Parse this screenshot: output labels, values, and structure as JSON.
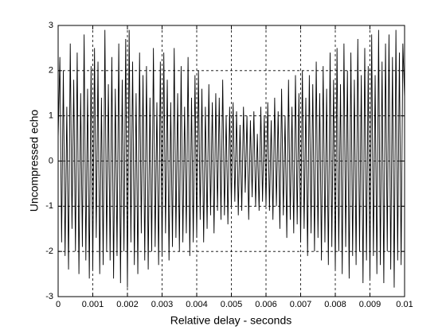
{
  "chart_data": {
    "type": "line",
    "xlabel": "Relative delay - seconds",
    "ylabel": "Uncompressed echo",
    "color": "#000000",
    "grid": true,
    "xlim": [
      0,
      0.01
    ],
    "ylim": [
      -3,
      3
    ],
    "xticks": [
      0,
      0.001,
      0.002,
      0.003,
      0.004,
      0.005,
      0.006,
      0.007,
      0.008,
      0.009,
      0.01
    ],
    "yticks": [
      -3,
      -2,
      -1,
      0,
      1,
      2,
      3
    ],
    "x": [
      0,
      5e-05,
      0.0001,
      0.00015,
      0.0002,
      0.00025,
      0.0003,
      0.00035,
      0.0004,
      0.00045,
      0.0005,
      0.00055,
      0.0006,
      0.00065,
      0.0007,
      0.00075,
      0.0008,
      0.00085,
      0.0009,
      0.00095,
      0.001,
      0.00105,
      0.0011,
      0.00115,
      0.0012,
      0.00125,
      0.0013,
      0.00135,
      0.0014,
      0.00145,
      0.0015,
      0.00155,
      0.0016,
      0.00165,
      0.0017,
      0.00175,
      0.0018,
      0.00185,
      0.0019,
      0.00195,
      0.002,
      0.00205,
      0.0021,
      0.00215,
      0.0022,
      0.00225,
      0.0023,
      0.00235,
      0.0024,
      0.00245,
      0.0025,
      0.00255,
      0.0026,
      0.00265,
      0.0027,
      0.00275,
      0.0028,
      0.00285,
      0.0029,
      0.00295,
      0.003,
      0.00305,
      0.0031,
      0.00315,
      0.0032,
      0.00325,
      0.0033,
      0.00335,
      0.0034,
      0.00345,
      0.0035,
      0.00355,
      0.0036,
      0.00365,
      0.0037,
      0.00375,
      0.0038,
      0.00385,
      0.0039,
      0.00395,
      0.004,
      0.00405,
      0.0041,
      0.00415,
      0.0042,
      0.00425,
      0.0043,
      0.00435,
      0.0044,
      0.00445,
      0.0045,
      0.00455,
      0.0046,
      0.00465,
      0.0047,
      0.00475,
      0.0048,
      0.00485,
      0.0049,
      0.00495,
      0.005,
      0.00505,
      0.0051,
      0.00515,
      0.0052,
      0.00525,
      0.0053,
      0.00535,
      0.0054,
      0.00545,
      0.0055,
      0.00555,
      0.0056,
      0.00565,
      0.0057,
      0.00575,
      0.0058,
      0.00585,
      0.0059,
      0.00595,
      0.006,
      0.00605,
      0.0061,
      0.00615,
      0.0062,
      0.00625,
      0.0063,
      0.00635,
      0.0064,
      0.00645,
      0.0065,
      0.00655,
      0.0066,
      0.00665,
      0.0067,
      0.00675,
      0.0068,
      0.00685,
      0.0069,
      0.00695,
      0.007,
      0.00705,
      0.0071,
      0.00715,
      0.0072,
      0.00725,
      0.0073,
      0.00735,
      0.0074,
      0.00745,
      0.0075,
      0.00755,
      0.0076,
      0.00765,
      0.0077,
      0.00775,
      0.0078,
      0.00785,
      0.0079,
      0.00795,
      0.008,
      0.00805,
      0.0081,
      0.00815,
      0.0082,
      0.00825,
      0.0083,
      0.00835,
      0.0084,
      0.00845,
      0.0085,
      0.00855,
      0.0086,
      0.00865,
      0.0087,
      0.00875,
      0.0088,
      0.00885,
      0.0089,
      0.00895,
      0.009,
      0.00905,
      0.0091,
      0.00915,
      0.0092,
      0.00925,
      0.0093,
      0.00935,
      0.0094,
      0.00945,
      0.0095,
      0.00955,
      0.0096,
      0.00965,
      0.0097,
      0.00975,
      0.0098,
      0.00985,
      0.0099,
      0.00995,
      0.01
    ],
    "values": [
      0.5,
      2.3,
      -1.8,
      2.0,
      -2.1,
      1.2,
      -2.4,
      2.6,
      -1.5,
      1.8,
      -2.0,
      2.4,
      -2.5,
      1.5,
      -1.9,
      2.8,
      -2.2,
      1.6,
      -2.6,
      2.1,
      -2.4,
      2.5,
      -1.7,
      2.2,
      -2.5,
      1.4,
      -2.3,
      2.9,
      -2.0,
      1.7,
      -2.2,
      2.3,
      -2.6,
      1.6,
      -2.1,
      2.6,
      -2.7,
      1.8,
      -2.0,
      2.7,
      -2.8,
      2.9,
      -1.8,
      2.2,
      -2.3,
      1.5,
      -2.5,
      2.4,
      -1.6,
      1.9,
      -2.2,
      2.1,
      -2.4,
      1.4,
      -2.0,
      2.5,
      -1.9,
      1.3,
      -2.3,
      2.2,
      -2.1,
      2.4,
      -1.6,
      1.8,
      -2.2,
      1.3,
      -1.9,
      2.5,
      -1.7,
      1.5,
      -2.0,
      2.1,
      -1.8,
      1.2,
      -1.6,
      2.3,
      -2.1,
      1.4,
      -1.8,
      1.9,
      -1.7,
      2.0,
      -1.3,
      1.6,
      -1.8,
      1.2,
      -1.5,
      1.7,
      -1.2,
      1.3,
      -1.6,
      1.5,
      -1.1,
      1.4,
      -1.3,
      1.8,
      -1.2,
      1.0,
      -1.4,
      1.2,
      -1.0,
      1.3,
      -0.9,
      1.1,
      -1.2,
      0.8,
      -1.1,
      1.2,
      -0.7,
      1.0,
      -1.3,
      0.9,
      -0.8,
      1.1,
      -1.0,
      0.6,
      -1.1,
      1.2,
      -0.9,
      1.0,
      -1.0,
      1.3,
      -1.1,
      0.9,
      -1.3,
      1.4,
      -1.0,
      1.1,
      -1.5,
      1.6,
      -1.2,
      1.0,
      -1.7,
      1.8,
      -1.3,
      1.2,
      -1.6,
      1.9,
      -1.4,
      1.5,
      -1.8,
      2.0,
      -1.5,
      1.4,
      -2.1,
      1.9,
      -1.6,
      1.7,
      -2.0,
      2.2,
      -1.7,
      1.5,
      -2.2,
      2.1,
      -1.8,
      1.6,
      -2.3,
      2.4,
      -1.9,
      1.8,
      -2.4,
      2.5,
      -2.0,
      1.7,
      -2.5,
      2.6,
      -1.9,
      2.0,
      -2.6,
      2.4,
      -2.1,
      1.8,
      -2.3,
      2.7,
      -2.0,
      1.9,
      -2.7,
      2.5,
      -2.2,
      2.1,
      -2.6,
      2.8,
      -2.1,
      1.9,
      -2.5,
      2.9,
      -2.3,
      2.2,
      -2.7,
      2.6,
      -2.0,
      2.8,
      -2.4,
      2.3,
      -2.8,
      2.9,
      -2.2,
      2.4,
      -2.3,
      2.6,
      1.4
    ]
  }
}
